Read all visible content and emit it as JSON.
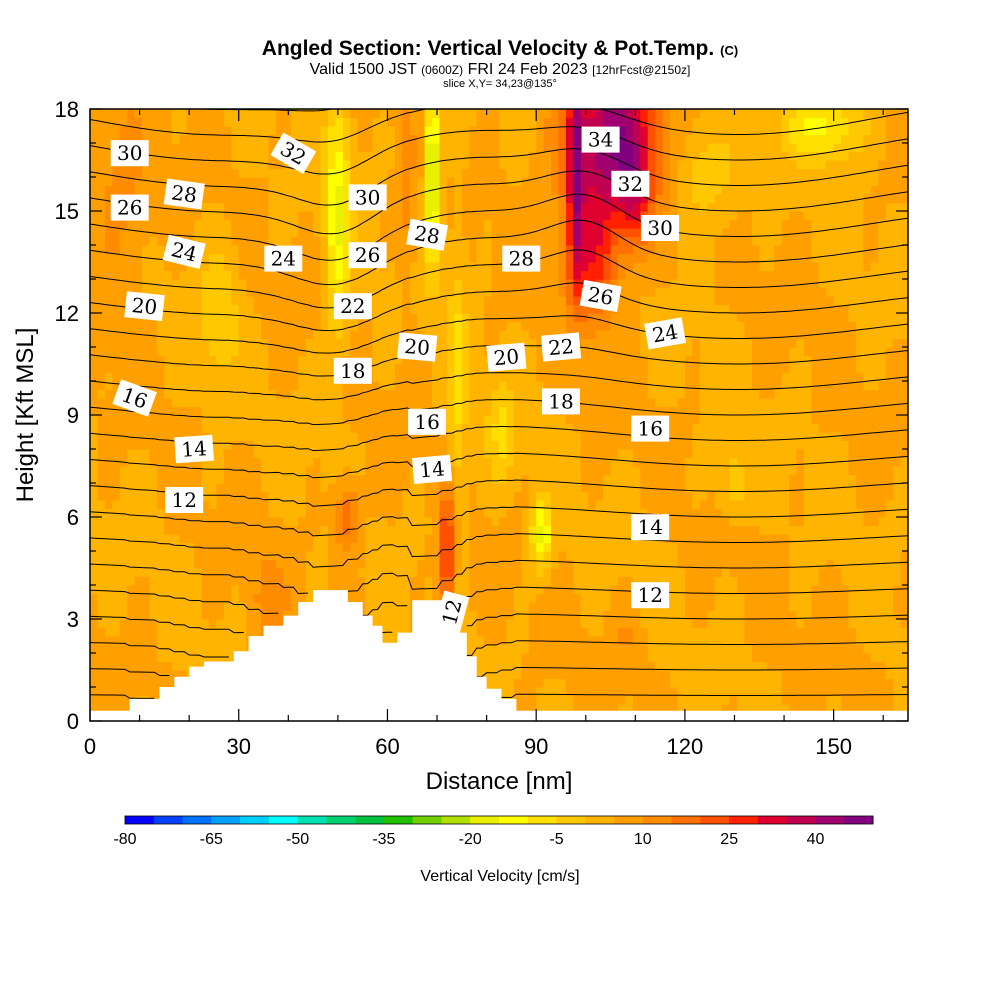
{
  "header": {
    "title": "Angled Section: Vertical Velocity & Pot.Temp.",
    "title_mark": "(C)",
    "valid_main": "Valid 1500 JST",
    "valid_utc": "(0600Z)",
    "valid_date": "FRI 24 Feb 2023",
    "forecast_info": "[12hrFcst@2150z]",
    "slice_info": "slice X,Y= 34,23@135°"
  },
  "chart_data": {
    "type": "heatmap",
    "xlabel": "Distance [nm]",
    "ylabel": "Height [Kft MSL]",
    "xlim": [
      0,
      165
    ],
    "ylim": [
      0,
      18
    ],
    "xticks": [
      0,
      30,
      60,
      90,
      120,
      150
    ],
    "yticks": [
      0,
      3,
      6,
      9,
      12,
      15,
      18
    ],
    "colorbar": {
      "label": "Vertical Velocity [cm/s]",
      "tick_labels": [
        "-80",
        "-65",
        "-50",
        "-35",
        "-20",
        "-5",
        "10",
        "25",
        "40"
      ],
      "range": [
        -80,
        50
      ],
      "step": 5,
      "colors": [
        "#0000ff",
        "#0040ff",
        "#0070ff",
        "#00a0ff",
        "#00d0ff",
        "#00ffff",
        "#00e0b0",
        "#00d070",
        "#00c040",
        "#20c000",
        "#70d000",
        "#b0e000",
        "#e8f000",
        "#ffff00",
        "#ffe000",
        "#ffc800",
        "#ffb400",
        "#ffa000",
        "#ff8c00",
        "#ff7000",
        "#ff5000",
        "#ff2000",
        "#e00030",
        "#c00050",
        "#a00070",
        "#800080"
      ]
    },
    "terrain_profile": [
      {
        "x": 0,
        "top": 0.3
      },
      {
        "x": 8,
        "top": 0.3
      },
      {
        "x": 8,
        "top": 0.65
      },
      {
        "x": 14,
        "top": 0.65
      },
      {
        "x": 14,
        "top": 1.0
      },
      {
        "x": 17,
        "top": 1.0
      },
      {
        "x": 17,
        "top": 1.3
      },
      {
        "x": 20,
        "top": 1.3
      },
      {
        "x": 20,
        "top": 1.6
      },
      {
        "x": 23,
        "top": 1.6
      },
      {
        "x": 23,
        "top": 1.75
      },
      {
        "x": 29,
        "top": 1.75
      },
      {
        "x": 29,
        "top": 2.05
      },
      {
        "x": 32,
        "top": 2.05
      },
      {
        "x": 32,
        "top": 2.5
      },
      {
        "x": 35,
        "top": 2.5
      },
      {
        "x": 35,
        "top": 2.8
      },
      {
        "x": 39,
        "top": 2.8
      },
      {
        "x": 39,
        "top": 3.1
      },
      {
        "x": 42,
        "top": 3.1
      },
      {
        "x": 42,
        "top": 3.5
      },
      {
        "x": 45,
        "top": 3.5
      },
      {
        "x": 45,
        "top": 3.85
      },
      {
        "x": 52,
        "top": 3.85
      },
      {
        "x": 52,
        "top": 3.5
      },
      {
        "x": 55,
        "top": 3.5
      },
      {
        "x": 55,
        "top": 3.1
      },
      {
        "x": 57,
        "top": 3.1
      },
      {
        "x": 57,
        "top": 2.8
      },
      {
        "x": 59,
        "top": 2.8
      },
      {
        "x": 59,
        "top": 2.3
      },
      {
        "x": 62,
        "top": 2.3
      },
      {
        "x": 62,
        "top": 2.6
      },
      {
        "x": 65,
        "top": 2.6
      },
      {
        "x": 65,
        "top": 3.55
      },
      {
        "x": 71,
        "top": 3.55
      },
      {
        "x": 71,
        "top": 3.1
      },
      {
        "x": 74,
        "top": 3.1
      },
      {
        "x": 74,
        "top": 2.6
      },
      {
        "x": 76,
        "top": 2.6
      },
      {
        "x": 76,
        "top": 1.9
      },
      {
        "x": 78,
        "top": 1.9
      },
      {
        "x": 78,
        "top": 1.3
      },
      {
        "x": 80,
        "top": 1.3
      },
      {
        "x": 80,
        "top": 0.95
      },
      {
        "x": 83,
        "top": 0.95
      },
      {
        "x": 83,
        "top": 0.65
      },
      {
        "x": 86,
        "top": 0.65
      },
      {
        "x": 86,
        "top": 0.3
      },
      {
        "x": 165,
        "top": 0.3
      }
    ],
    "velocity_features": [
      {
        "x": 105,
        "y": 17,
        "sx": 9,
        "sy": 2.5,
        "value": 45
      },
      {
        "x": 101,
        "y": 13.5,
        "sx": 5,
        "sy": 1.8,
        "value": 25
      },
      {
        "x": 6,
        "y": 15.5,
        "sx": 6,
        "sy": 3,
        "value": 12
      },
      {
        "x": 72,
        "y": 5,
        "sx": 1.5,
        "sy": 1.8,
        "value": 30
      },
      {
        "x": 52,
        "y": 6,
        "sx": 2.5,
        "sy": 1,
        "value": 20
      },
      {
        "x": 36,
        "y": 3.5,
        "sx": 4,
        "sy": 1.5,
        "value": 12
      },
      {
        "x": 69,
        "y": 16,
        "sx": 1.3,
        "sy": 2.5,
        "value": -30
      },
      {
        "x": 50,
        "y": 15,
        "sx": 2.5,
        "sy": 3.5,
        "value": -15
      },
      {
        "x": 91,
        "y": 5.5,
        "sx": 2,
        "sy": 1,
        "value": -18
      },
      {
        "x": 83,
        "y": 8.5,
        "sx": 3,
        "sy": 1.5,
        "value": -6
      },
      {
        "x": 74,
        "y": 10,
        "sx": 2,
        "sy": 4,
        "value": -6
      },
      {
        "x": 148,
        "y": 17.5,
        "sx": 8,
        "sy": 1,
        "value": -12
      },
      {
        "x": 130,
        "y": 7,
        "sx": 3,
        "sy": 1,
        "value": -4
      },
      {
        "x": 26,
        "y": 12,
        "sx": 4,
        "sy": 2,
        "value": -4
      },
      {
        "x": 124,
        "y": 16,
        "sx": 6,
        "sy": 1.5,
        "value": -4
      },
      {
        "x": 98,
        "y": 16,
        "sx": 1.5,
        "sy": 3,
        "value": 30
      },
      {
        "x": 110,
        "y": 15.5,
        "sx": 3,
        "sy": 1.5,
        "value": 20
      },
      {
        "x": 108,
        "y": 2.5,
        "sx": 3,
        "sy": 1,
        "value": 10
      },
      {
        "x": 64,
        "y": 15.5,
        "sx": 1.5,
        "sy": 3,
        "value": 12
      }
    ],
    "theta_contours": {
      "levels": [
        11,
        12,
        13,
        14,
        15,
        16,
        17,
        18,
        19,
        20,
        21,
        22,
        23,
        24,
        25,
        26,
        27,
        28,
        29,
        30,
        31,
        32,
        33,
        34,
        35,
        36
      ],
      "labels": [
        {
          "text": "30",
          "x": 8,
          "y": 16.7,
          "angle": 0
        },
        {
          "text": "26",
          "x": 8,
          "y": 15.1,
          "angle": 0
        },
        {
          "text": "28",
          "x": 19,
          "y": 15.5,
          "angle": 8
        },
        {
          "text": "24",
          "x": 19,
          "y": 13.8,
          "angle": 14
        },
        {
          "text": "20",
          "x": 11,
          "y": 12.2,
          "angle": 6
        },
        {
          "text": "16",
          "x": 9,
          "y": 9.5,
          "angle": 20
        },
        {
          "text": "14",
          "x": 21,
          "y": 8.0,
          "angle": -4
        },
        {
          "text": "12",
          "x": 19,
          "y": 6.5,
          "angle": 0
        },
        {
          "text": "32",
          "x": 41,
          "y": 16.7,
          "angle": 30
        },
        {
          "text": "30",
          "x": 56,
          "y": 15.4,
          "angle": 0
        },
        {
          "text": "24",
          "x": 39,
          "y": 13.6,
          "angle": 0
        },
        {
          "text": "26",
          "x": 56,
          "y": 13.7,
          "angle": 0
        },
        {
          "text": "22",
          "x": 53,
          "y": 12.2,
          "angle": 0
        },
        {
          "text": "18",
          "x": 53,
          "y": 10.3,
          "angle": 0
        },
        {
          "text": "20",
          "x": 66,
          "y": 11.0,
          "angle": 5
        },
        {
          "text": "28",
          "x": 68,
          "y": 14.3,
          "angle": 10
        },
        {
          "text": "16",
          "x": 68,
          "y": 8.8,
          "angle": 0
        },
        {
          "text": "14",
          "x": 69,
          "y": 7.4,
          "angle": -5
        },
        {
          "text": "12",
          "x": 73,
          "y": 3.2,
          "angle": -75
        },
        {
          "text": "34",
          "x": 103,
          "y": 17.1,
          "angle": 0
        },
        {
          "text": "32",
          "x": 109,
          "y": 15.8,
          "angle": 0
        },
        {
          "text": "30",
          "x": 115,
          "y": 14.5,
          "angle": 0
        },
        {
          "text": "28",
          "x": 87,
          "y": 13.6,
          "angle": 0
        },
        {
          "text": "26",
          "x": 103,
          "y": 12.5,
          "angle": 10
        },
        {
          "text": "24",
          "x": 116,
          "y": 11.4,
          "angle": -10
        },
        {
          "text": "22",
          "x": 95,
          "y": 11.0,
          "angle": -5
        },
        {
          "text": "20",
          "x": 84,
          "y": 10.7,
          "angle": -5
        },
        {
          "text": "18",
          "x": 95,
          "y": 9.4,
          "angle": 0
        },
        {
          "text": "16",
          "x": 113,
          "y": 8.6,
          "angle": 0
        },
        {
          "text": "14",
          "x": 113,
          "y": 5.7,
          "angle": 0
        },
        {
          "text": "12",
          "x": 113,
          "y": 3.7,
          "angle": 0
        }
      ]
    }
  }
}
